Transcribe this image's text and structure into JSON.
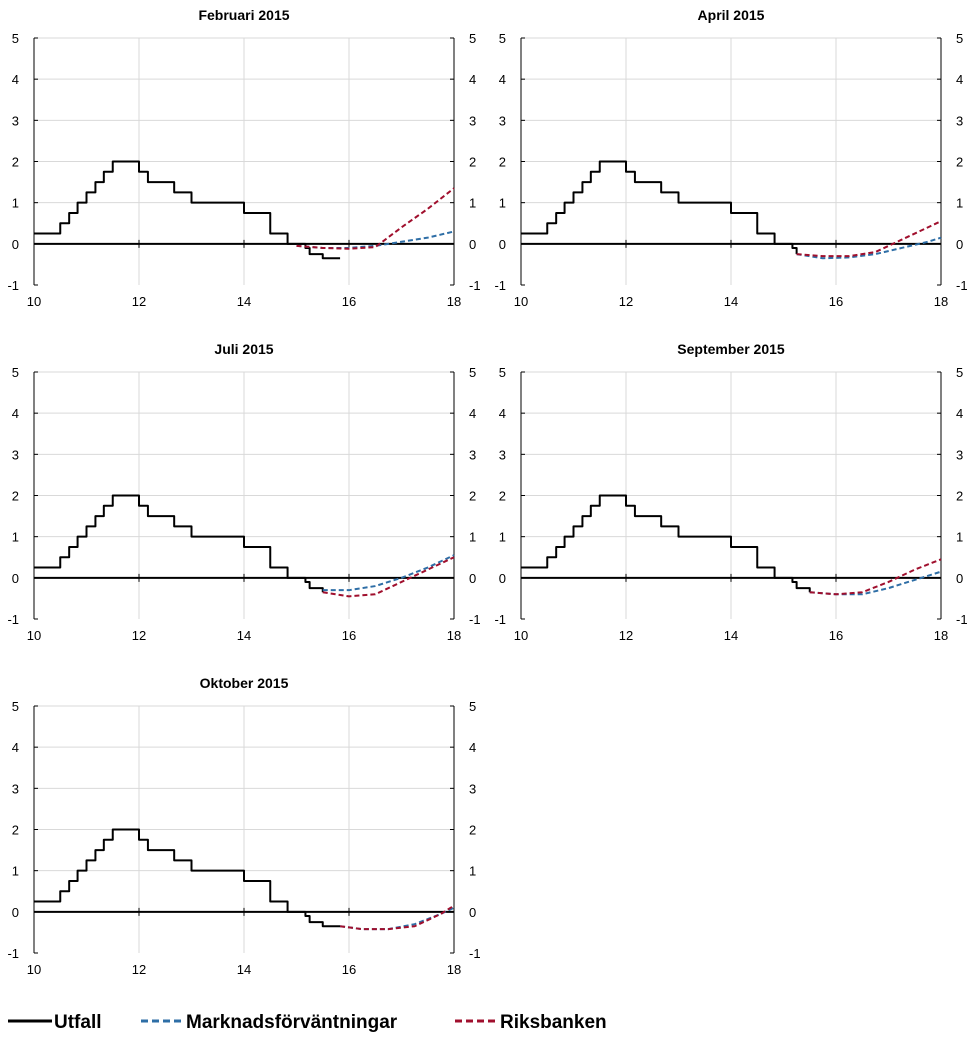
{
  "colors": {
    "utfall": "#000000",
    "market": "#2e6ea6",
    "riksbank": "#a00f2d",
    "grid": "#d9d9d9"
  },
  "legend": [
    {
      "key": "utfall",
      "label": "Utfall",
      "style": "solid"
    },
    {
      "key": "market",
      "label": "Marknadsförväntningar",
      "style": "dashed"
    },
    {
      "key": "riksbank",
      "label": "Riksbanken",
      "style": "dashed"
    }
  ],
  "chart_data": [
    {
      "type": "line",
      "title": "Februari 2015",
      "xlim": [
        10,
        18
      ],
      "ylim": [
        -1,
        5
      ],
      "grid": true,
      "x_ticks": [
        "10",
        "12",
        "14",
        "16",
        "18"
      ],
      "y_ticks": [
        "5",
        "4",
        "3",
        "2",
        "1",
        "0",
        "-1"
      ],
      "series": [
        {
          "name": "Utfall",
          "key": "utfall",
          "step": true,
          "x": [
            10.0,
            10.5,
            10.67,
            10.83,
            11.0,
            11.17,
            11.33,
            11.5,
            11.75,
            12.0,
            12.17,
            12.67,
            13.0,
            14.0,
            14.5,
            14.83,
            15.17,
            15.25,
            15.5,
            15.83
          ],
          "y": [
            0.25,
            0.5,
            0.75,
            1.0,
            1.25,
            1.5,
            1.75,
            2.0,
            2.0,
            1.75,
            1.5,
            1.25,
            1.0,
            0.75,
            0.25,
            0.0,
            -0.1,
            -0.25,
            -0.35,
            -0.35
          ]
        },
        {
          "name": "Marknadsförväntningar",
          "key": "market",
          "x": [
            15.0,
            15.5,
            16.0,
            16.5,
            17.0,
            17.5,
            18.0
          ],
          "y": [
            -0.05,
            -0.1,
            -0.1,
            -0.05,
            0.05,
            0.15,
            0.3
          ]
        },
        {
          "name": "Riksbanken",
          "key": "riksbank",
          "x": [
            15.0,
            15.5,
            16.0,
            16.5,
            17.0,
            17.5,
            18.0
          ],
          "y": [
            -0.05,
            -0.1,
            -0.12,
            -0.08,
            0.4,
            0.85,
            1.35
          ]
        }
      ]
    },
    {
      "type": "line",
      "title": "April 2015",
      "xlim": [
        10,
        18
      ],
      "ylim": [
        -1,
        5
      ],
      "grid": true,
      "x_ticks": [
        "10",
        "12",
        "14",
        "16",
        "18"
      ],
      "y_ticks": [
        "5",
        "4",
        "3",
        "2",
        "1",
        "0",
        "-1"
      ],
      "series": [
        {
          "name": "Utfall",
          "key": "utfall",
          "step": true,
          "x": [
            10.0,
            10.5,
            10.67,
            10.83,
            11.0,
            11.17,
            11.33,
            11.5,
            11.75,
            12.0,
            12.17,
            12.67,
            13.0,
            14.0,
            14.5,
            14.83,
            15.17,
            15.25
          ],
          "y": [
            0.25,
            0.5,
            0.75,
            1.0,
            1.25,
            1.5,
            1.75,
            2.0,
            2.0,
            1.75,
            1.5,
            1.25,
            1.0,
            0.75,
            0.25,
            0.0,
            -0.1,
            -0.25
          ]
        },
        {
          "name": "Marknadsförväntningar",
          "key": "market",
          "x": [
            15.25,
            15.75,
            16.25,
            16.75,
            17.25,
            17.75,
            18.0
          ],
          "y": [
            -0.25,
            -0.35,
            -0.33,
            -0.25,
            -0.1,
            0.05,
            0.15
          ]
        },
        {
          "name": "Riksbanken",
          "key": "riksbank",
          "x": [
            15.25,
            15.75,
            16.25,
            16.75,
            17.25,
            17.75,
            18.0
          ],
          "y": [
            -0.25,
            -0.3,
            -0.3,
            -0.2,
            0.1,
            0.4,
            0.55
          ]
        }
      ]
    },
    {
      "type": "line",
      "title": "Juli 2015",
      "xlim": [
        10,
        18
      ],
      "ylim": [
        -1,
        5
      ],
      "grid": true,
      "x_ticks": [
        "10",
        "12",
        "14",
        "16",
        "18"
      ],
      "y_ticks": [
        "5",
        "4",
        "3",
        "2",
        "1",
        "0",
        "-1"
      ],
      "series": [
        {
          "name": "Utfall",
          "key": "utfall",
          "step": true,
          "x": [
            10.0,
            10.5,
            10.67,
            10.83,
            11.0,
            11.17,
            11.33,
            11.5,
            11.75,
            12.0,
            12.17,
            12.67,
            13.0,
            14.0,
            14.5,
            14.83,
            15.17,
            15.25,
            15.5
          ],
          "y": [
            0.25,
            0.5,
            0.75,
            1.0,
            1.25,
            1.5,
            1.75,
            2.0,
            2.0,
            1.75,
            1.5,
            1.25,
            1.0,
            0.75,
            0.25,
            0.0,
            -0.1,
            -0.25,
            -0.35
          ]
        },
        {
          "name": "Marknadsförväntningar",
          "key": "market",
          "x": [
            15.5,
            16.0,
            16.5,
            17.0,
            17.5,
            18.0
          ],
          "y": [
            -0.3,
            -0.3,
            -0.2,
            0.0,
            0.25,
            0.55
          ]
        },
        {
          "name": "Riksbanken",
          "key": "riksbank",
          "x": [
            15.5,
            16.0,
            16.5,
            17.0,
            17.5,
            18.0
          ],
          "y": [
            -0.35,
            -0.45,
            -0.4,
            -0.1,
            0.2,
            0.5
          ]
        }
      ]
    },
    {
      "type": "line",
      "title": "September 2015",
      "xlim": [
        10,
        18
      ],
      "ylim": [
        -1,
        5
      ],
      "grid": true,
      "x_ticks": [
        "10",
        "12",
        "14",
        "16",
        "18"
      ],
      "y_ticks": [
        "5",
        "4",
        "3",
        "2",
        "1",
        "0",
        "-1"
      ],
      "series": [
        {
          "name": "Utfall",
          "key": "utfall",
          "step": true,
          "x": [
            10.0,
            10.5,
            10.67,
            10.83,
            11.0,
            11.17,
            11.33,
            11.5,
            11.75,
            12.0,
            12.17,
            12.67,
            13.0,
            14.0,
            14.5,
            14.83,
            15.17,
            15.25,
            15.5
          ],
          "y": [
            0.25,
            0.5,
            0.75,
            1.0,
            1.25,
            1.5,
            1.75,
            2.0,
            2.0,
            1.75,
            1.5,
            1.25,
            1.0,
            0.75,
            0.25,
            0.0,
            -0.1,
            -0.25,
            -0.35
          ]
        },
        {
          "name": "Marknadsförväntningar",
          "key": "market",
          "x": [
            15.5,
            16.0,
            16.5,
            17.0,
            17.5,
            18.0
          ],
          "y": [
            -0.35,
            -0.4,
            -0.4,
            -0.25,
            -0.05,
            0.15
          ]
        },
        {
          "name": "Riksbanken",
          "key": "riksbank",
          "x": [
            15.5,
            16.0,
            16.5,
            17.0,
            17.5,
            18.0
          ],
          "y": [
            -0.35,
            -0.4,
            -0.35,
            -0.1,
            0.2,
            0.45
          ]
        }
      ]
    },
    {
      "type": "line",
      "title": "Oktober 2015",
      "xlim": [
        10,
        18
      ],
      "ylim": [
        -1,
        5
      ],
      "grid": true,
      "x_ticks": [
        "10",
        "12",
        "14",
        "16",
        "18"
      ],
      "y_ticks": [
        "5",
        "4",
        "3",
        "2",
        "1",
        "0",
        "-1"
      ],
      "series": [
        {
          "name": "Utfall",
          "key": "utfall",
          "step": true,
          "x": [
            10.0,
            10.5,
            10.67,
            10.83,
            11.0,
            11.17,
            11.33,
            11.5,
            11.75,
            12.0,
            12.17,
            12.67,
            13.0,
            14.0,
            14.5,
            14.83,
            15.17,
            15.25,
            15.5,
            15.83
          ],
          "y": [
            0.25,
            0.5,
            0.75,
            1.0,
            1.25,
            1.5,
            1.75,
            2.0,
            2.0,
            1.75,
            1.5,
            1.25,
            1.0,
            0.75,
            0.25,
            0.0,
            -0.1,
            -0.25,
            -0.35,
            -0.35
          ]
        },
        {
          "name": "Marknadsförväntningar",
          "key": "market",
          "x": [
            15.83,
            16.25,
            16.75,
            17.25,
            17.75,
            18.0
          ],
          "y": [
            -0.35,
            -0.42,
            -0.42,
            -0.3,
            -0.05,
            0.1
          ]
        },
        {
          "name": "Riksbanken",
          "key": "riksbank",
          "x": [
            15.83,
            16.25,
            16.75,
            17.25,
            17.75,
            18.0
          ],
          "y": [
            -0.35,
            -0.42,
            -0.42,
            -0.35,
            -0.05,
            0.15
          ]
        }
      ]
    }
  ]
}
